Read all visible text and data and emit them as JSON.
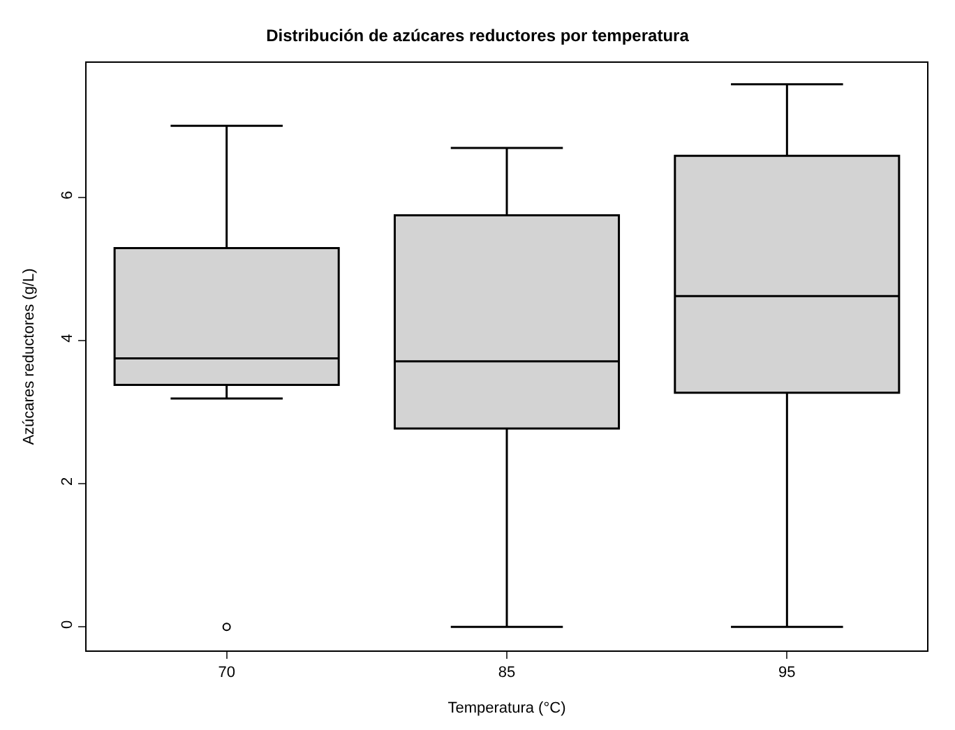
{
  "chart_data": {
    "type": "box",
    "title": "Distribución de azúcares reductores por temperatura",
    "xlabel": "Temperatura (°C)",
    "ylabel": "Azúcares reductores (g/L)",
    "categories": [
      "70",
      "85",
      "95"
    ],
    "boxes": [
      {
        "low": 3.19,
        "q1": 3.38,
        "median": 3.75,
        "q3": 5.29,
        "high": 7.0,
        "outliers": [
          0
        ]
      },
      {
        "low": 0,
        "q1": 2.77,
        "median": 3.71,
        "q3": 5.75,
        "high": 6.69
      },
      {
        "low": 0,
        "q1": 3.27,
        "median": 4.62,
        "q3": 6.58,
        "high": 7.58
      }
    ],
    "color": "#d3d3d3",
    "ylim": [
      -0.33,
      7.88
    ],
    "yticks": [
      0,
      2,
      4,
      6
    ]
  }
}
